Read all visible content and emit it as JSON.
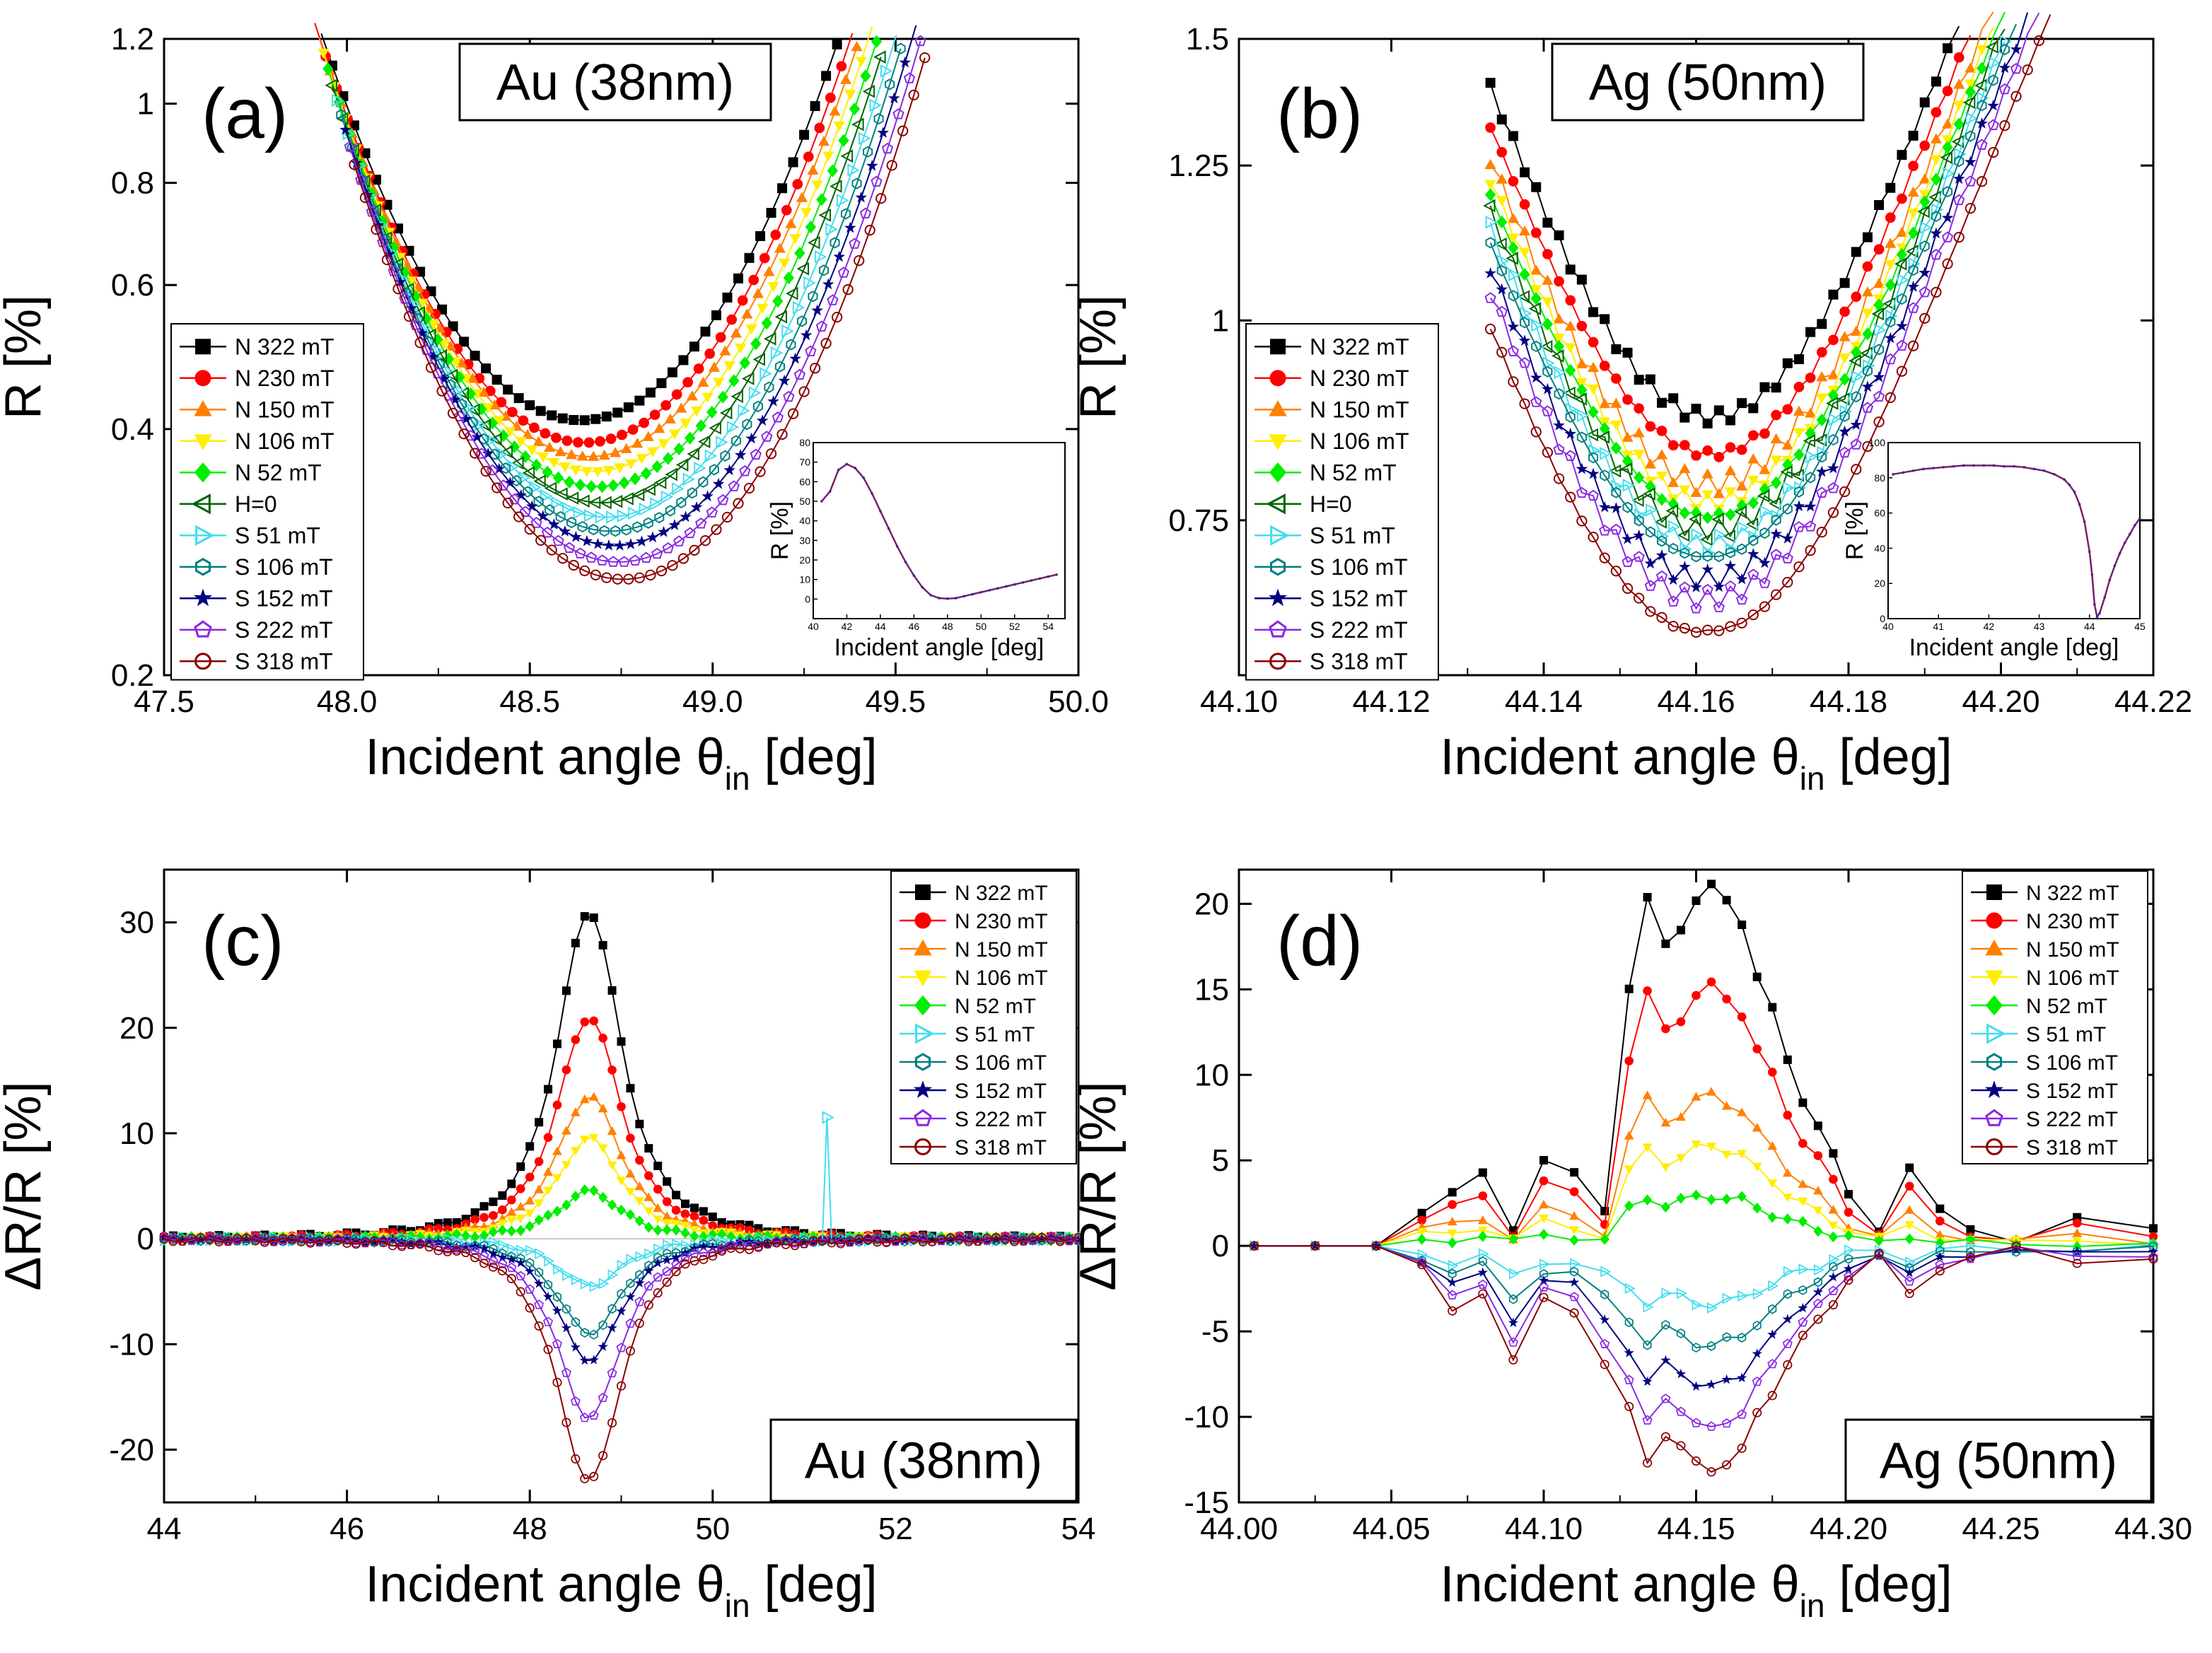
{
  "chart_data": [
    {
      "panel": "(a)",
      "type": "line",
      "tag": "Au (38nm)",
      "xlabel": "Incident angle θin [deg]",
      "xlabel_main": "Incident angle θ",
      "xlabel_sub": "in",
      "xlabel_tail": " [deg]",
      "ylabel": "R [%]",
      "yscale": "log",
      "xlim": [
        47.5,
        50.0
      ],
      "ylim": [
        0.2,
        1.2
      ],
      "xticks": [
        47.5,
        48.0,
        48.5,
        49.0,
        49.5,
        50.0
      ],
      "xtick_labels": [
        "47.5",
        "48.0",
        "48.5",
        "49.0",
        "49.5",
        "50.0"
      ],
      "yticks": [
        0.2,
        0.4,
        0.6,
        0.8,
        1,
        1.2
      ],
      "ytick_labels": [
        "0.2",
        "0.4",
        "0.6",
        "0.8",
        "1",
        "1.2"
      ],
      "curve": {
        "center": 48.64,
        "curvature": 1.35,
        "step": 0.03
      },
      "series": [
        {
          "name": "N 322 mT",
          "marker": "square",
          "color": "#000000",
          "min": 0.41
        },
        {
          "name": "N 230 mT",
          "marker": "circle",
          "color": "#ff0000",
          "min": 0.385
        },
        {
          "name": "N 150 mT",
          "marker": "triangle-up",
          "color": "#ff8000",
          "min": 0.37
        },
        {
          "name": "N 106 mT",
          "marker": "triangle-down",
          "color": "#ffee00",
          "min": 0.355
        },
        {
          "name": "N   52 mT",
          "marker": "diamond",
          "color": "#00ee00",
          "min": 0.34
        },
        {
          "name": "H=0",
          "marker": "triangle-left",
          "color": "#006400",
          "min": 0.325
        },
        {
          "name": "S   51 mT",
          "marker": "triangle-right",
          "color": "#44ddee",
          "min": 0.312
        },
        {
          "name": "S 106 mT",
          "marker": "hexagon",
          "color": "#008080",
          "min": 0.3
        },
        {
          "name": "S 152 mT",
          "marker": "star",
          "color": "#000080",
          "min": 0.288
        },
        {
          "name": "S 222 mT",
          "marker": "pentagon",
          "color": "#8a2be2",
          "min": 0.275
        },
        {
          "name": "S 318 mT",
          "marker": "circle-open",
          "color": "#8b0000",
          "min": 0.262
        }
      ],
      "inset": {
        "xlabel": "Incident angle [deg]",
        "ylabel": "R [%]",
        "xlim": [
          40,
          55
        ],
        "ylim": [
          -10,
          80
        ],
        "xticks": [
          40,
          42,
          44,
          46,
          48,
          50,
          52,
          54
        ],
        "xtick_labels": [
          "40",
          "42",
          "44",
          "46",
          "48",
          "50",
          "52",
          "54"
        ],
        "yticks": [
          0,
          10,
          20,
          30,
          40,
          50,
          60,
          70,
          80
        ],
        "ytick_labels": [
          "0",
          "10",
          "20",
          "30",
          "40",
          "50",
          "60",
          "70",
          "80"
        ],
        "x": [
          40.5,
          41.0,
          41.5,
          42.0,
          42.5,
          43.0,
          43.5,
          44.0,
          44.5,
          45.0,
          45.5,
          46.0,
          46.5,
          47.0,
          47.5,
          48.0,
          48.5,
          49.0,
          49.5,
          50.0,
          50.5,
          51.0,
          51.5,
          52.0,
          52.5,
          53.0,
          53.5,
          54.0,
          54.5
        ],
        "y": [
          50,
          55,
          66,
          69,
          67,
          62,
          54,
          45,
          36,
          27,
          19,
          12,
          6,
          2,
          0.5,
          0.2,
          0.5,
          1.5,
          2.5,
          3.5,
          4.5,
          5.5,
          6.5,
          7.5,
          8.5,
          9.5,
          10.5,
          11.5,
          12.5
        ]
      }
    },
    {
      "panel": "(b)",
      "type": "line",
      "tag": "Ag (50nm)",
      "xlabel": "Incident angle θin [deg]",
      "xlabel_main": "Incident angle θ",
      "xlabel_sub": "in",
      "xlabel_tail": " [deg]",
      "ylabel": "R [%]",
      "yscale": "log",
      "xlim": [
        44.1,
        44.22
      ],
      "ylim": [
        0.6,
        1.5
      ],
      "xticks": [
        44.1,
        44.12,
        44.14,
        44.16,
        44.18,
        44.2,
        44.22
      ],
      "xtick_labels": [
        "44.10",
        "44.12",
        "44.14",
        "44.16",
        "44.18",
        "44.20",
        "44.22"
      ],
      "yticks": [
        0.75,
        1,
        1.25,
        1.5
      ],
      "ytick_labels": [
        "0.75",
        "1",
        "1.25",
        "1.5"
      ],
      "curve": {
        "center": 44.162,
        "step": 0.0015,
        "start": 44.133,
        "end": 44.215
      },
      "series": [
        {
          "name": "N 322 mT",
          "marker": "square",
          "color": "#000000",
          "min": 0.87
        },
        {
          "name": "N 230 mT",
          "marker": "circle",
          "color": "#ff0000",
          "min": 0.825
        },
        {
          "name": "N 150 mT",
          "marker": "triangle-up",
          "color": "#ff8000",
          "min": 0.79
        },
        {
          "name": "N 106 mT",
          "marker": "triangle-down",
          "color": "#ffee00",
          "min": 0.77
        },
        {
          "name": "N   52 mT",
          "marker": "diamond",
          "color": "#00ee00",
          "min": 0.755
        },
        {
          "name": "H=0",
          "marker": "triangle-left",
          "color": "#006400",
          "min": 0.74
        },
        {
          "name": "S   51 mT",
          "marker": "triangle-right",
          "color": "#44ddee",
          "min": 0.725
        },
        {
          "name": "S 106 mT",
          "marker": "hexagon",
          "color": "#008080",
          "min": 0.712
        },
        {
          "name": "S 152 mT",
          "marker": "star",
          "color": "#000080",
          "min": 0.69
        },
        {
          "name": "S 222 mT",
          "marker": "pentagon",
          "color": "#8a2be2",
          "min": 0.67
        },
        {
          "name": "S 318 mT",
          "marker": "circle-open",
          "color": "#8b0000",
          "min": 0.64
        }
      ],
      "inset": {
        "xlabel": "Incident angle [deg]",
        "ylabel": "R [%]",
        "xlim": [
          40,
          45
        ],
        "ylim": [
          0,
          100
        ],
        "xticks": [
          40,
          41,
          42,
          43,
          44,
          45
        ],
        "xtick_labels": [
          "40",
          "41",
          "42",
          "43",
          "44",
          "45"
        ],
        "yticks": [
          0,
          20,
          40,
          60,
          80,
          100
        ],
        "ytick_labels": [
          "0",
          "20",
          "40",
          "60",
          "80",
          "100"
        ],
        "x": [
          40.1,
          40.3,
          40.5,
          40.7,
          40.9,
          41.1,
          41.3,
          41.5,
          41.7,
          41.9,
          42.1,
          42.3,
          42.5,
          42.7,
          42.9,
          43.1,
          43.3,
          43.5,
          43.6,
          43.7,
          43.8,
          43.9,
          44.0,
          44.05,
          44.1,
          44.15,
          44.2,
          44.3,
          44.4,
          44.5,
          44.6,
          44.7,
          44.8,
          44.9,
          45.0
        ],
        "y": [
          82,
          83,
          84,
          85,
          85.5,
          86,
          86.5,
          87,
          87,
          87,
          87,
          86.5,
          86.5,
          86,
          85,
          84,
          82,
          79,
          76,
          72,
          65,
          55,
          38,
          25,
          8,
          1,
          3,
          12,
          22,
          30,
          37,
          43,
          48,
          53,
          57
        ]
      }
    },
    {
      "panel": "(c)",
      "type": "line",
      "tag": "Au (38nm)",
      "xlabel": "Incident angle θin [deg]",
      "xlabel_main": "Incident angle θ",
      "xlabel_sub": "in",
      "xlabel_tail": " [deg]",
      "ylabel": "ΔR/R [%]",
      "xlim": [
        44,
        54
      ],
      "ylim": [
        -25,
        35
      ],
      "xticks": [
        44,
        46,
        48,
        50,
        52,
        54
      ],
      "xtick_labels": [
        "44",
        "46",
        "48",
        "50",
        "52",
        "54"
      ],
      "yticks": [
        -20,
        -10,
        0,
        10,
        20,
        30
      ],
      "ytick_labels": [
        "-20",
        "-10",
        "0",
        "10",
        "20",
        "30"
      ],
      "curve": {
        "center": 48.65,
        "width": 0.55,
        "tail": 0.15,
        "step": 0.1,
        "start": 44.0,
        "end": 54.0
      },
      "series": [
        {
          "name": "N 322 mT",
          "marker": "square",
          "color": "#000000",
          "peak": 31
        },
        {
          "name": "N 230 mT",
          "marker": "circle",
          "color": "#ff0000",
          "peak": 21
        },
        {
          "name": "N 150 mT",
          "marker": "triangle-up",
          "color": "#ff8000",
          "peak": 13.5
        },
        {
          "name": "N 106 mT",
          "marker": "triangle-down",
          "color": "#ffee00",
          "peak": 9.5
        },
        {
          "name": "N   52 mT",
          "marker": "diamond",
          "color": "#00ee00",
          "peak": 4.5
        },
        {
          "name": "S   51 mT",
          "marker": "triangle-right",
          "color": "#44ddee",
          "peak": -4.5
        },
        {
          "name": "S 106 mT",
          "marker": "hexagon",
          "color": "#008080",
          "peak": -9
        },
        {
          "name": "S 152 mT",
          "marker": "star",
          "color": "#000080",
          "peak": -11.5
        },
        {
          "name": "S 222 mT",
          "marker": "pentagon",
          "color": "#8a2be2",
          "peak": -17
        },
        {
          "name": "S 318 mT",
          "marker": "circle-open",
          "color": "#8b0000",
          "peak": -23
        }
      ],
      "spike": {
        "series": "S   51 mT",
        "x": 51.25,
        "y": 11.5
      }
    },
    {
      "panel": "(d)",
      "type": "line",
      "tag": "Ag (50nm)",
      "xlabel": "Incident angle θin [deg]",
      "xlabel_main": "Incident angle θ",
      "xlabel_sub": "in",
      "xlabel_tail": " [deg]",
      "ylabel": "ΔR/R [%]",
      "xlim": [
        44.0,
        44.3
      ],
      "ylim": [
        -15,
        22
      ],
      "xticks": [
        44.0,
        44.05,
        44.1,
        44.15,
        44.2,
        44.25,
        44.3
      ],
      "xtick_labels": [
        "44.00",
        "44.05",
        "44.10",
        "44.15",
        "44.20",
        "44.25",
        "44.30"
      ],
      "yticks": [
        -15,
        -10,
        -5,
        0,
        5,
        10,
        15,
        20
      ],
      "ytick_labels": [
        "-15",
        "-10",
        "-5",
        "0",
        "5",
        "10",
        "15",
        "20"
      ],
      "x": [
        44.005,
        44.025,
        44.045,
        44.06,
        44.07,
        44.08,
        44.09,
        44.1,
        44.11,
        44.12,
        44.128,
        44.134,
        44.14,
        44.145,
        44.15,
        44.155,
        44.16,
        44.165,
        44.17,
        44.175,
        44.18,
        44.185,
        44.19,
        44.195,
        44.2,
        44.21,
        44.22,
        44.23,
        44.24,
        44.255,
        44.275,
        44.3
      ],
      "shape": [
        0,
        0,
        0,
        0.1,
        0.14,
        0.19,
        0.05,
        0.24,
        0.19,
        0.09,
        0.71,
        0.95,
        0.81,
        0.86,
        0.95,
        0.98,
        0.93,
        0.88,
        0.74,
        0.64,
        0.5,
        0.4,
        0.33,
        0.24,
        0.14,
        0.05,
        0.21,
        0.09,
        0.05,
        0.02,
        0.07,
        0.04
      ],
      "series": [
        {
          "name": "N 322 mT",
          "marker": "square",
          "color": "#000000",
          "peak": 21.5
        },
        {
          "name": "N 230 mT",
          "marker": "circle",
          "color": "#ff0000",
          "peak": 15.5
        },
        {
          "name": "N 150 mT",
          "marker": "triangle-up",
          "color": "#ff8000",
          "peak": 9
        },
        {
          "name": "N 106 mT",
          "marker": "triangle-down",
          "color": "#ffee00",
          "peak": 6
        },
        {
          "name": "N   52 mT",
          "marker": "diamond",
          "color": "#00ee00",
          "peak": 3
        },
        {
          "name": "S   51 mT",
          "marker": "triangle-right",
          "color": "#44ddee",
          "peak": -3.5
        },
        {
          "name": "S 106 mT",
          "marker": "hexagon",
          "color": "#008080",
          "peak": -6
        },
        {
          "name": "S 152 mT",
          "marker": "star",
          "color": "#000080",
          "peak": -8.5
        },
        {
          "name": "S 222 mT",
          "marker": "pentagon",
          "color": "#8a2be2",
          "peak": -11
        },
        {
          "name": "S 318 mT",
          "marker": "circle-open",
          "color": "#8b0000",
          "peak": -13.5
        }
      ]
    }
  ]
}
